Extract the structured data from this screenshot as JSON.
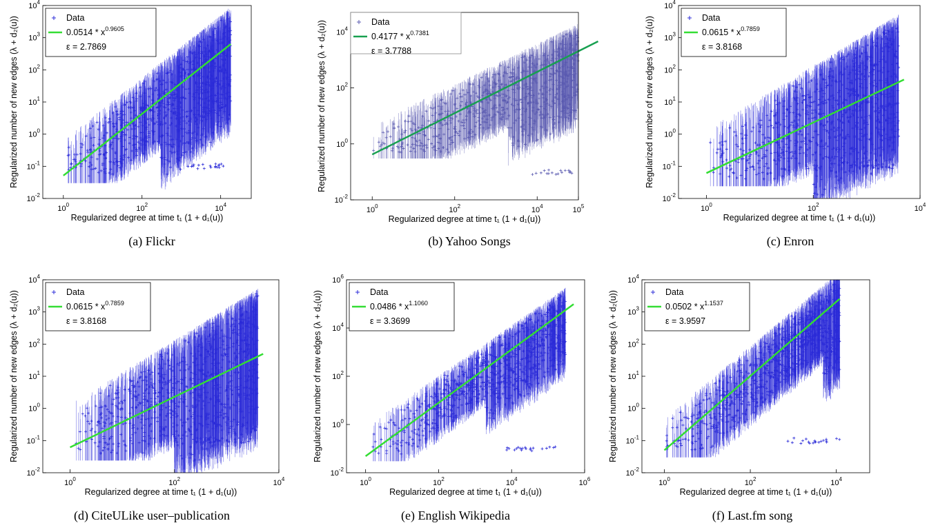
{
  "chart_data": [
    {
      "type": "scatter",
      "caption": "(a)  Flickr",
      "xlabel": "Regularized degree at time t₁ (1 + d₁(u))",
      "ylabel": "Regularized number of new edges (λ + d₂(u))",
      "xlog": true,
      "ylog": true,
      "xlim": [
        0.3,
        60000
      ],
      "ylim": [
        0.01,
        10000
      ],
      "xticks": [
        "10^0",
        "10^2",
        "10^4"
      ],
      "yticks": [
        "10^-2",
        "10^-1",
        "10^0",
        "10^1",
        "10^2",
        "10^3",
        "10^4"
      ],
      "legend": "top-left",
      "series": [
        {
          "name": "Data",
          "kind": "errorbar-points",
          "color": "#2b2bd8"
        },
        {
          "name": "0.0514 * x^0.9605",
          "kind": "fit-line",
          "coef": 0.0514,
          "exp": 0.9605,
          "color": "#33dd33"
        }
      ],
      "epsilon_label": "ε = 2.7869",
      "fit_label_base": "0.0514 * x",
      "fit_label_exp": "0.9605",
      "fit_range": [
        1,
        18000
      ],
      "cloud": {
        "xmax": 18000,
        "upper_coef": 0.2,
        "upper_exp": 0.97,
        "lower_min": 0.05,
        "lower_knee": 300
      }
    },
    {
      "type": "scatter",
      "caption": "(b)  Yahoo Songs",
      "xlabel": "Regularized degree at time t₁ (1 + d₁(u))",
      "ylabel": "Regularized number of new edges (λ + d₂(u))",
      "xlog": true,
      "ylog": true,
      "xlim": [
        0.3,
        100000
      ],
      "ylim": [
        0.01,
        50000
      ],
      "xticks": [
        "10^0",
        "10^2",
        "10^4",
        "10^5"
      ],
      "yticks": [
        "10^-2",
        "10^0",
        "10^2",
        "10^4"
      ],
      "legend": "top-left",
      "series": [
        {
          "name": "Data",
          "kind": "errorbar-points",
          "color": "#5a5ab0"
        },
        {
          "name": "0.4177 * x^0.7381",
          "kind": "fit-line",
          "coef": 0.4177,
          "exp": 0.7381,
          "color": "#18a050"
        }
      ],
      "epsilon_label": "ε = 3.7788",
      "fit_label_base": "0.4177 * x",
      "fit_label_exp": "0.7381",
      "fit_range": [
        1,
        300000
      ],
      "cloud": {
        "xmax": 300000,
        "upper_coef": 1.5,
        "upper_exp": 0.72,
        "lower_min": 0.5,
        "lower_knee": 2000
      }
    },
    {
      "type": "scatter",
      "caption": "(c)  Enron",
      "xlabel": "Regularized degree at time t₁ (1 + d₁(u))",
      "ylabel": "Regularized number of new edges (λ + d₂(u))",
      "xlog": true,
      "ylog": true,
      "xlim": [
        0.3,
        10000
      ],
      "ylim": [
        0.01,
        10000
      ],
      "xticks": [
        "10^0",
        "10^2",
        "10^4"
      ],
      "yticks": [
        "10^-2",
        "10^-1",
        "10^0",
        "10^1",
        "10^2",
        "10^3",
        "10^4"
      ],
      "legend": "top-left",
      "series": [
        {
          "name": "Data",
          "kind": "errorbar-points",
          "color": "#2b2bd8"
        },
        {
          "name": "0.0615 * x^0.7859",
          "kind": "fit-line",
          "coef": 0.0615,
          "exp": 0.7859,
          "color": "#33dd33"
        }
      ],
      "epsilon_label": "ε = 3.8168",
      "fit_label_base": "0.0615 * x",
      "fit_label_exp": "0.7859",
      "fit_range": [
        1,
        5000
      ],
      "cloud": {
        "xmax": 4000,
        "upper_coef": 0.4,
        "upper_exp": 1.0,
        "lower_min": 0.04,
        "lower_knee": 100
      }
    },
    {
      "type": "scatter",
      "caption": "(d)  CiteULike user–publication",
      "xlabel": "Regularized degree at time t₁ (1 + d₁(u))",
      "ylabel": "Regularized number of new edges (λ + d₂(u))",
      "xlog": true,
      "ylog": true,
      "xlim": [
        0.3,
        10000
      ],
      "ylim": [
        0.01,
        10000
      ],
      "xticks": [
        "10^0",
        "10^2",
        "10^4"
      ],
      "yticks": [
        "10^-2",
        "10^-1",
        "10^0",
        "10^1",
        "10^2",
        "10^3",
        "10^4"
      ],
      "legend": "top-left",
      "series": [
        {
          "name": "Data",
          "kind": "errorbar-points",
          "color": "#2b2bd8"
        },
        {
          "name": "0.0615 * x^0.7859",
          "kind": "fit-line",
          "coef": 0.0615,
          "exp": 0.7859,
          "color": "#33dd33"
        }
      ],
      "epsilon_label": "ε = 3.8168",
      "fit_label_base": "0.0615 * x",
      "fit_label_exp": "0.7859",
      "fit_range": [
        1,
        5000
      ],
      "cloud": {
        "xmax": 4000,
        "upper_coef": 0.4,
        "upper_exp": 1.0,
        "lower_min": 0.04,
        "lower_knee": 100
      }
    },
    {
      "type": "scatter",
      "caption": "(e)  English Wikipedia",
      "xlabel": "Regularized degree at time t₁ (1 + d₁(u))",
      "ylabel": "Regularized number of new edges (λ + d₂(u))",
      "xlog": true,
      "ylog": true,
      "xlim": [
        0.3,
        1000000
      ],
      "ylim": [
        0.01,
        1000000
      ],
      "xticks": [
        "10^0",
        "10^2",
        "10^4",
        "10^6"
      ],
      "yticks": [
        "10^-2",
        "10^0",
        "10^2",
        "10^4",
        "10^6"
      ],
      "legend": "top-left",
      "series": [
        {
          "name": "Data",
          "kind": "errorbar-points",
          "color": "#2b2bd8"
        },
        {
          "name": "0.0486 * x^1.1060",
          "kind": "fit-line",
          "coef": 0.0486,
          "exp": 1.106,
          "color": "#33dd33"
        }
      ],
      "epsilon_label": "ε = 3.3699",
      "fit_label_base": "0.0486 * x",
      "fit_label_exp": "1.1060",
      "fit_range": [
        1,
        500000
      ],
      "cloud": {
        "xmax": 300000,
        "upper_coef": 0.25,
        "upper_exp": 1.05,
        "lower_min": 0.05,
        "lower_knee": 2000
      }
    },
    {
      "type": "scatter",
      "caption": "(f)  Last.fm song",
      "xlabel": "Regularized degree at time t₁ (1 + d₁(u))",
      "ylabel": "Regularized number of new edges (λ + d₂(u))",
      "xlog": true,
      "ylog": true,
      "xlim": [
        0.3,
        60000
      ],
      "ylim": [
        0.01,
        10000
      ],
      "xticks": [
        "10^0",
        "10^2",
        "10^4"
      ],
      "yticks": [
        "10^-2",
        "10^-1",
        "10^0",
        "10^1",
        "10^2",
        "10^3",
        "10^4"
      ],
      "legend": "top-left",
      "series": [
        {
          "name": "Data",
          "kind": "errorbar-points",
          "color": "#2b2bd8"
        },
        {
          "name": "0.0502 * x^1.1537",
          "kind": "fit-line",
          "coef": 0.0502,
          "exp": 1.1537,
          "color": "#33dd33"
        }
      ],
      "epsilon_label": "ε = 3.9597",
      "fit_label_base": "0.0502 * x",
      "fit_label_exp": "1.1537",
      "fit_range": [
        1,
        12000
      ],
      "cloud": {
        "xmax": 12000,
        "upper_coef": 0.15,
        "upper_exp": 1.12,
        "lower_min": 0.05,
        "lower_knee": 5000
      }
    }
  ]
}
